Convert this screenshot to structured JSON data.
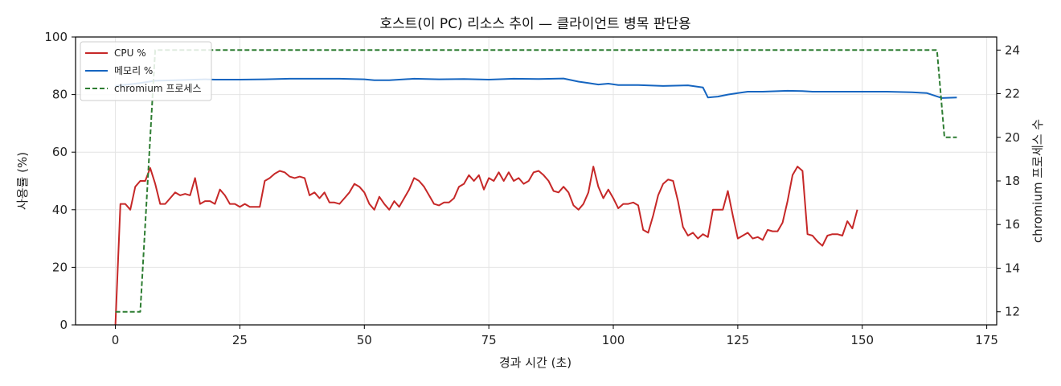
{
  "chart_data": {
    "type": "line",
    "title": "호스트(이 PC) 리소스 추이 — 클라이언트 병목 판단용",
    "xlabel": "경과 시간 (초)",
    "ylabel_left": "사용률 (%)",
    "ylabel_right": "chromium 프로세스 수",
    "xlim": [
      -8,
      177
    ],
    "ylim_left": [
      0,
      100
    ],
    "ylim_right": [
      11.4,
      24.6
    ],
    "xticks": [
      0,
      25,
      50,
      75,
      100,
      125,
      150,
      175
    ],
    "yticks_left": [
      0,
      20,
      40,
      60,
      80,
      100
    ],
    "yticks_right": [
      12,
      14,
      16,
      18,
      20,
      22,
      24
    ],
    "grid": true,
    "legend_position": "top-left",
    "series": [
      {
        "name": "CPU %",
        "axis": "left",
        "color": "#c62828",
        "style": "solid",
        "points": [
          [
            0,
            0
          ],
          [
            1,
            42
          ],
          [
            2,
            42
          ],
          [
            3,
            40
          ],
          [
            4,
            48
          ],
          [
            5,
            50
          ],
          [
            6,
            50
          ],
          [
            7,
            54.5
          ],
          [
            8,
            49
          ],
          [
            9,
            42
          ],
          [
            10,
            42
          ],
          [
            11,
            44
          ],
          [
            12,
            46
          ],
          [
            13,
            45
          ],
          [
            14,
            45.5
          ],
          [
            15,
            45
          ],
          [
            16,
            51
          ],
          [
            17,
            42
          ],
          [
            18,
            43
          ],
          [
            19,
            43
          ],
          [
            20,
            42
          ],
          [
            21,
            47
          ],
          [
            22,
            45
          ],
          [
            23,
            42
          ],
          [
            24,
            42
          ],
          [
            25,
            41
          ],
          [
            26,
            42
          ],
          [
            27,
            41
          ],
          [
            28,
            41
          ],
          [
            29,
            41
          ],
          [
            30,
            50
          ],
          [
            31,
            51
          ],
          [
            32,
            52.5
          ],
          [
            33,
            53.5
          ],
          [
            34,
            53
          ],
          [
            35,
            51.5
          ],
          [
            36,
            51
          ],
          [
            37,
            51.5
          ],
          [
            38,
            51
          ],
          [
            39,
            45
          ],
          [
            40,
            46
          ],
          [
            41,
            44
          ],
          [
            42,
            46
          ],
          [
            43,
            42.5
          ],
          [
            44,
            42.5
          ],
          [
            45,
            42
          ],
          [
            46,
            44
          ],
          [
            47,
            46
          ],
          [
            48,
            49
          ],
          [
            49,
            48
          ],
          [
            50,
            46
          ],
          [
            51,
            42
          ],
          [
            52,
            40
          ],
          [
            53,
            44.5
          ],
          [
            54,
            42
          ],
          [
            55,
            40
          ],
          [
            56,
            43
          ],
          [
            57,
            41
          ],
          [
            58,
            44
          ],
          [
            59,
            47
          ],
          [
            60,
            51
          ],
          [
            61,
            50
          ],
          [
            62,
            48
          ],
          [
            63,
            45
          ],
          [
            64,
            42
          ],
          [
            65,
            41.5
          ],
          [
            66,
            42.5
          ],
          [
            67,
            42.5
          ],
          [
            68,
            44
          ],
          [
            69,
            48
          ],
          [
            70,
            49
          ],
          [
            71,
            52
          ],
          [
            72,
            50
          ],
          [
            73,
            52
          ],
          [
            74,
            47
          ],
          [
            75,
            51
          ],
          [
            76,
            50
          ],
          [
            77,
            53
          ],
          [
            78,
            50
          ],
          [
            79,
            53
          ],
          [
            80,
            50
          ],
          [
            81,
            51
          ],
          [
            82,
            49
          ],
          [
            83,
            50
          ],
          [
            84,
            53
          ],
          [
            85,
            53.5
          ],
          [
            86,
            52
          ],
          [
            87,
            50
          ],
          [
            88,
            46.5
          ],
          [
            89,
            46
          ],
          [
            90,
            48
          ],
          [
            91,
            46
          ],
          [
            92,
            41.5
          ],
          [
            93,
            40
          ],
          [
            94,
            42
          ],
          [
            95,
            46
          ],
          [
            96,
            55
          ],
          [
            97,
            48
          ],
          [
            98,
            44
          ],
          [
            99,
            47
          ],
          [
            100,
            44
          ],
          [
            101,
            40.5
          ],
          [
            102,
            42
          ],
          [
            103,
            42
          ],
          [
            104,
            42.5
          ],
          [
            105,
            41.5
          ],
          [
            106,
            33
          ],
          [
            107,
            32
          ],
          [
            108,
            38
          ],
          [
            109,
            45
          ],
          [
            110,
            49
          ],
          [
            111,
            50.5
          ],
          [
            112,
            50
          ],
          [
            113,
            43
          ],
          [
            114,
            34
          ],
          [
            115,
            31
          ],
          [
            116,
            32
          ],
          [
            117,
            30
          ],
          [
            118,
            31.5
          ],
          [
            119,
            30.5
          ],
          [
            120,
            40
          ],
          [
            121,
            40
          ],
          [
            122,
            40
          ],
          [
            123,
            46.5
          ],
          [
            124,
            38
          ],
          [
            125,
            30
          ],
          [
            126,
            31
          ],
          [
            127,
            32
          ],
          [
            128,
            30
          ],
          [
            129,
            30.5
          ],
          [
            130,
            29.5
          ],
          [
            131,
            33
          ],
          [
            132,
            32.5
          ],
          [
            133,
            32.5
          ],
          [
            134,
            35.5
          ],
          [
            135,
            43
          ],
          [
            136,
            52
          ],
          [
            137,
            55
          ],
          [
            138,
            53.5
          ],
          [
            139,
            31.5
          ],
          [
            140,
            31
          ],
          [
            141,
            29
          ],
          [
            142,
            27.5
          ],
          [
            143,
            31
          ],
          [
            144,
            31.5
          ],
          [
            145,
            31.5
          ],
          [
            146,
            31
          ],
          [
            147,
            36
          ],
          [
            148,
            33.5
          ],
          [
            149,
            40
          ]
        ]
      },
      {
        "name": "메모리 %",
        "axis": "left",
        "color": "#1565c0",
        "style": "solid",
        "points": [
          [
            0,
            83
          ],
          [
            5,
            84
          ],
          [
            8,
            84.8
          ],
          [
            12,
            85
          ],
          [
            18,
            85.3
          ],
          [
            20,
            85.2
          ],
          [
            25,
            85.2
          ],
          [
            30,
            85.3
          ],
          [
            35,
            85.5
          ],
          [
            45,
            85.5
          ],
          [
            50,
            85.3
          ],
          [
            52,
            85
          ],
          [
            55,
            85
          ],
          [
            60,
            85.5
          ],
          [
            65,
            85.3
          ],
          [
            70,
            85.4
          ],
          [
            75,
            85.2
          ],
          [
            80,
            85.5
          ],
          [
            85,
            85.4
          ],
          [
            90,
            85.6
          ],
          [
            93,
            84.5
          ],
          [
            95,
            84
          ],
          [
            97,
            83.5
          ],
          [
            99,
            83.8
          ],
          [
            101,
            83.3
          ],
          [
            105,
            83.3
          ],
          [
            110,
            83
          ],
          [
            115,
            83.2
          ],
          [
            118,
            82.5
          ],
          [
            119,
            79
          ],
          [
            121,
            79.3
          ],
          [
            123,
            80
          ],
          [
            125,
            80.5
          ],
          [
            127,
            81
          ],
          [
            130,
            81
          ],
          [
            135,
            81.3
          ],
          [
            138,
            81.2
          ],
          [
            140,
            81
          ],
          [
            145,
            81
          ],
          [
            150,
            81
          ],
          [
            155,
            81
          ],
          [
            160,
            80.8
          ],
          [
            163,
            80.5
          ],
          [
            166,
            78.8
          ],
          [
            169,
            79
          ]
        ]
      },
      {
        "name": "chromium 프로세스",
        "axis": "right",
        "color": "#2e7d32",
        "style": "dashed",
        "points": [
          [
            0,
            12
          ],
          [
            5,
            12
          ],
          [
            8,
            24
          ],
          [
            165,
            24
          ],
          [
            166.5,
            20
          ],
          [
            169,
            20
          ]
        ]
      }
    ]
  }
}
